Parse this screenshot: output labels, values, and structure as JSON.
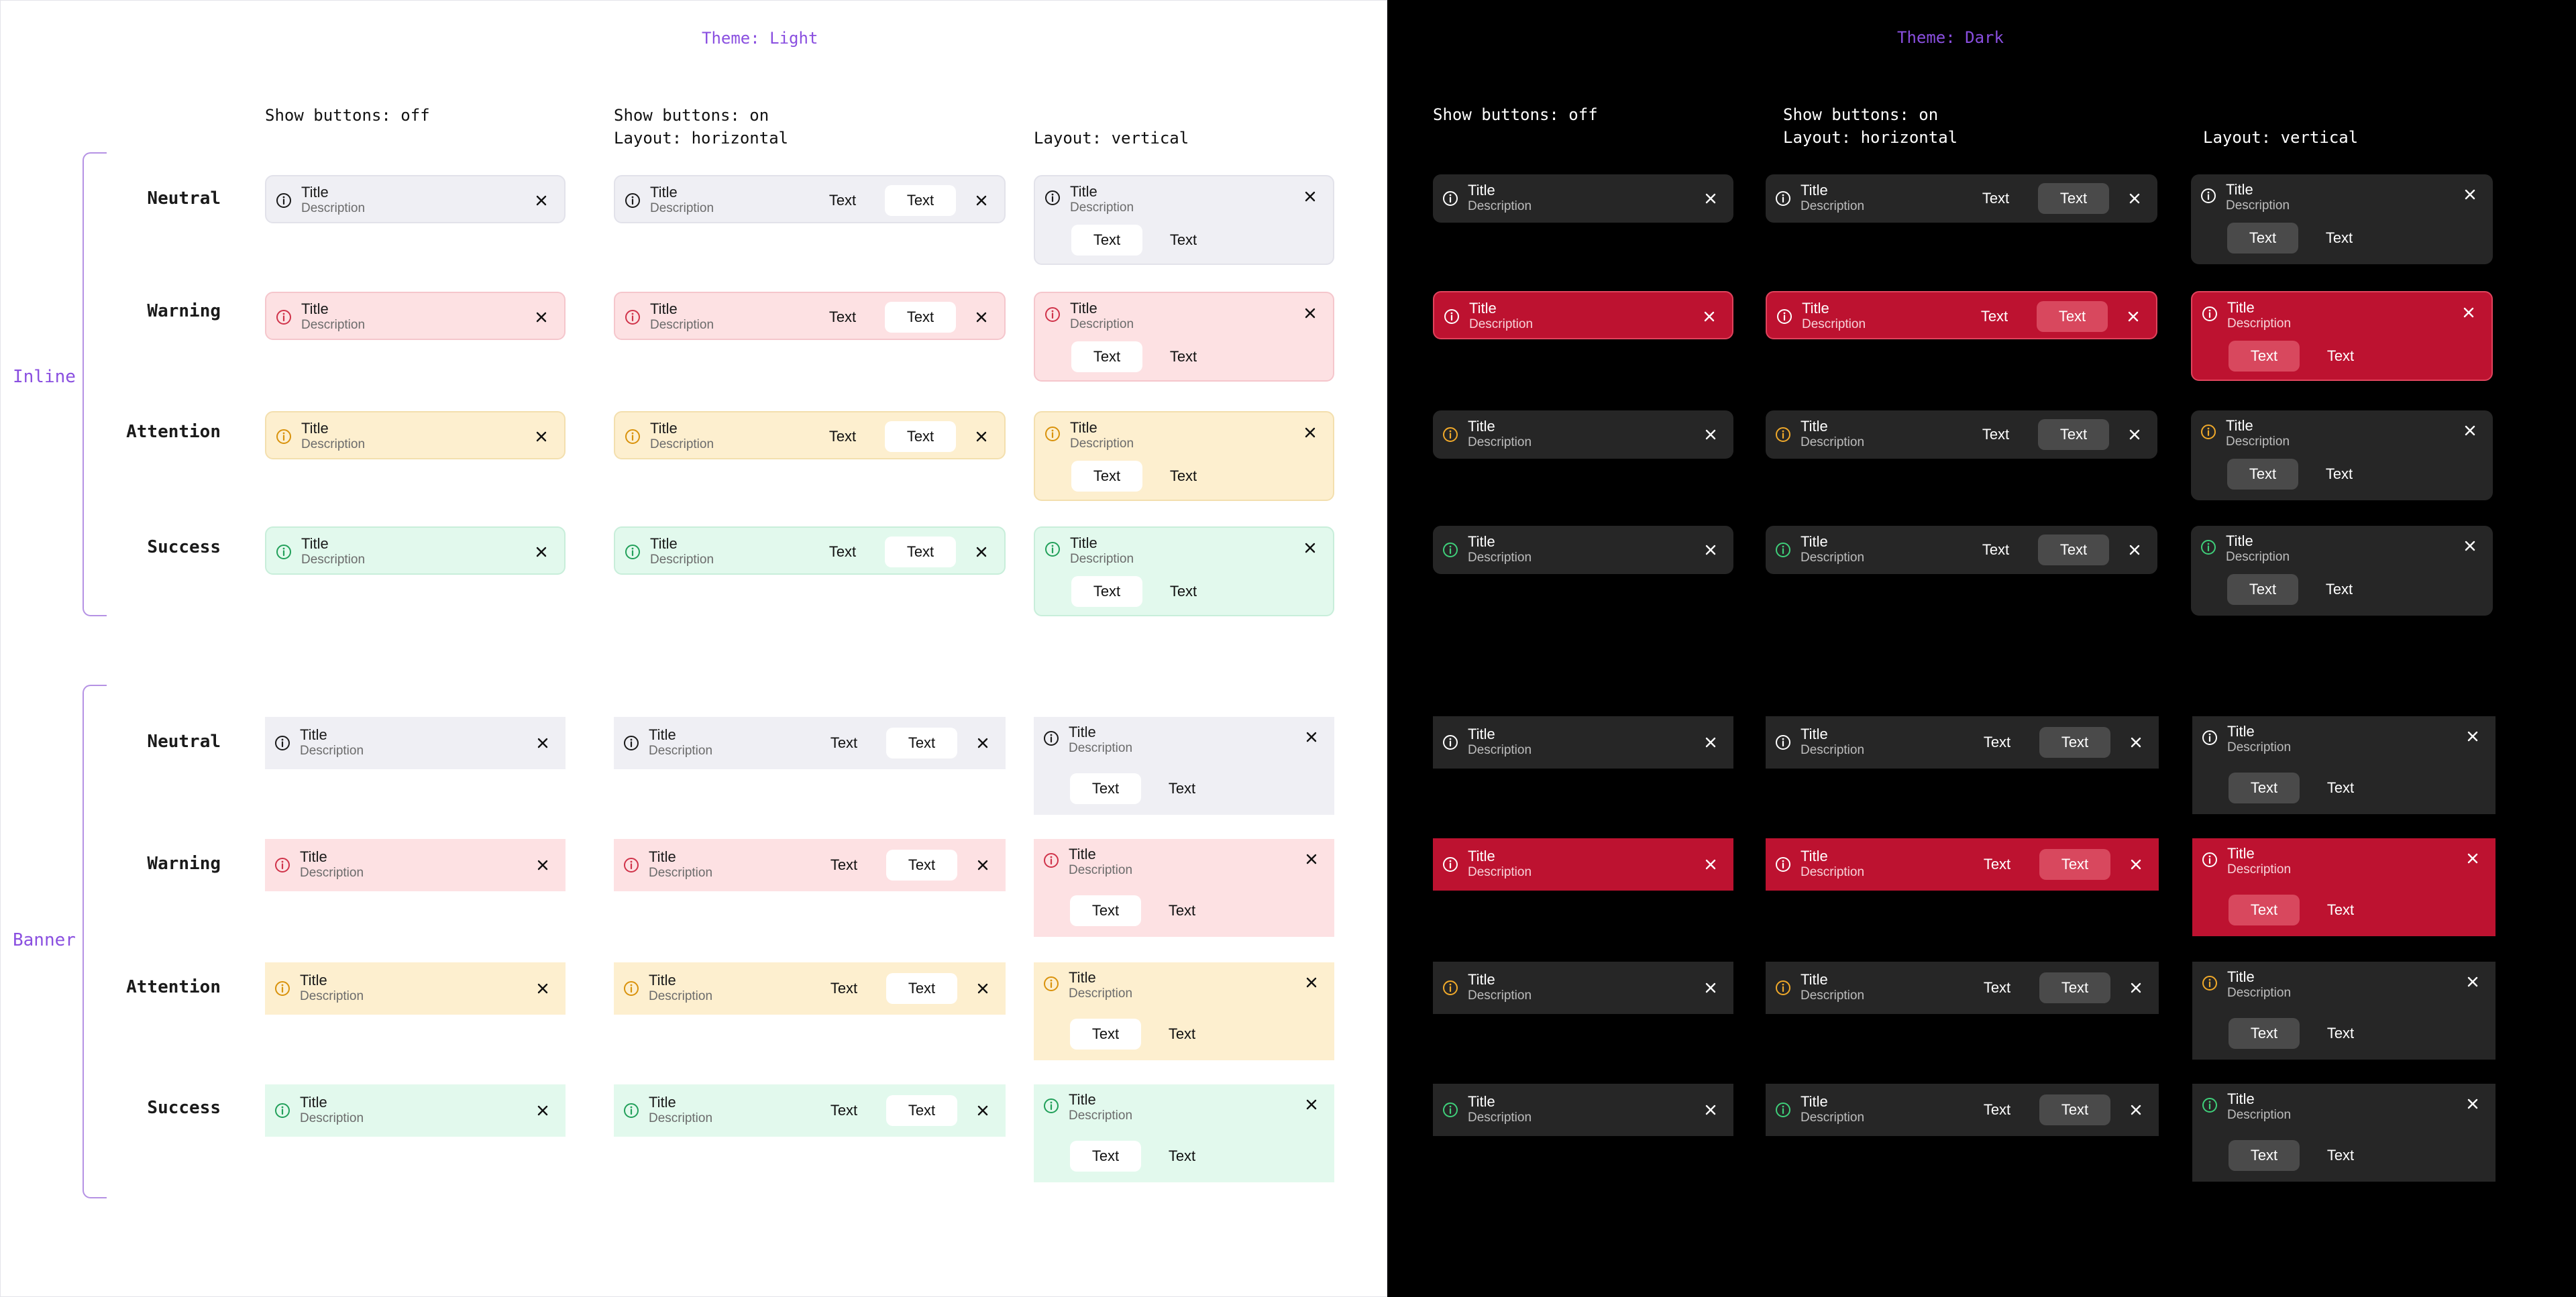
{
  "themes": {
    "light": {
      "label": "Theme: Light"
    },
    "dark": {
      "label": "Theme: Dark"
    }
  },
  "columns": [
    {
      "label": "Show buttons: off"
    },
    {
      "label": "Show buttons: on\nLayout: horizontal"
    },
    {
      "label": "Layout: vertical"
    }
  ],
  "groups": [
    {
      "label": "Inline",
      "rows": [
        "Neutral",
        "Warning",
        "Attention",
        "Success"
      ]
    },
    {
      "label": "Banner",
      "rows": [
        "Neutral",
        "Warning",
        "Attention",
        "Success"
      ]
    }
  ],
  "alert": {
    "title": "Title",
    "description": "Description",
    "primary_button": "Text",
    "secondary_button": "Text"
  },
  "icons": {
    "status": "info-circle-icon",
    "close": "close-icon"
  },
  "colors": {
    "accent_label": "#8a4fe0",
    "light": {
      "neutral": {
        "bg": "#efeff4",
        "icon": "#1a1a1a"
      },
      "warning": {
        "bg": "#fde1e3",
        "icon": "#d0334a"
      },
      "attention": {
        "bg": "#fdefcf",
        "icon": "#d9920c"
      },
      "success": {
        "bg": "#e2f9ed",
        "icon": "#22a05a"
      }
    },
    "dark": {
      "neutral": {
        "bg": "#262626",
        "icon": "#ffffff"
      },
      "warning": {
        "bg": "#bd1230",
        "icon": "#ffffff"
      },
      "attention": {
        "bg": "#262626",
        "icon": "#f0a92a"
      },
      "success": {
        "bg": "#262626",
        "icon": "#3fcf7a"
      }
    }
  }
}
